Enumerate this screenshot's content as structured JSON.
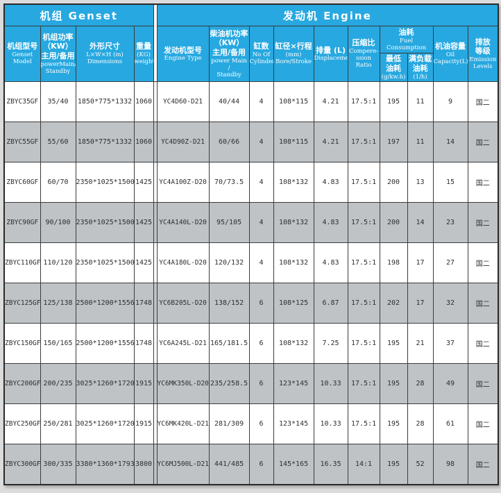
{
  "colors": {
    "header_blue": "#27a8e0",
    "row_white": "#ffffff",
    "row_alt_gray": "#bfc3c6",
    "border_dark": "#3a3a3a",
    "page_margin_gray": "#dcdcdc",
    "header_text": "#ffffff",
    "cell_text": "#2e2e2e"
  },
  "table": {
    "section_genset": "机组 Genset",
    "section_engine": "发动机 Engine",
    "headers": {
      "genset_model": {
        "zh": "机组型号",
        "en": "Genset\nModel"
      },
      "genset_power": {
        "zh": "机组功率\n（KW）\n主用/备用",
        "en": "powerMain/\nStandby"
      },
      "dimensions": {
        "zh": "外形尺寸",
        "en": "L×W×H (m)\nDimensions"
      },
      "weight": {
        "zh": "重量",
        "en": "(KG)\nweight"
      },
      "engine_type": {
        "zh": "发动机型号",
        "en": "Engine Type"
      },
      "engine_power": {
        "zh": "柴油机功率\n（KW）\n主用/备用",
        "en": "power Main /\nStandby"
      },
      "cylinders": {
        "zh": "缸数",
        "en": "No Of\nCylinder"
      },
      "bore_stroke": {
        "zh": "缸径×行程",
        "en": "(mm)\nBore/Stroke"
      },
      "displacement": {
        "zh": "排量 (L)",
        "en": "Displacement"
      },
      "compression_ratio": {
        "zh": "压缩比",
        "en": "Compere-\nssion Ratio"
      },
      "fuel_group": {
        "zh": "油耗",
        "en": "Fuel Consumption"
      },
      "fuel_min": {
        "zh": "最低\n油耗",
        "en": "(g/kw.h)"
      },
      "fuel_full_load": {
        "zh": "满负载\n油耗",
        "en": "(1/h)"
      },
      "oil_capacity": {
        "zh": "机油容量",
        "en": "Oil\nCapacity(L)"
      },
      "emission": {
        "zh": "排放\n等级",
        "en": "Emission\nLevels"
      }
    },
    "row_keys": [
      "model",
      "power",
      "dimensions",
      "weight",
      "engine_type",
      "engine_power",
      "cylinders",
      "bore_stroke",
      "displacement",
      "compression_ratio",
      "fuel_min",
      "fuel_full_load",
      "oil_capacity",
      "emission"
    ],
    "rows": [
      {
        "model": "ZBYC35GF",
        "power": "35/40",
        "dimensions": "1850*775*1332",
        "weight": "1060",
        "engine_type": "YC4D60-D21",
        "engine_power": "40/44",
        "cylinders": "4",
        "bore_stroke": "108*115",
        "displacement": "4.21",
        "compression_ratio": "17.5:1",
        "fuel_min": "195",
        "fuel_full_load": "11",
        "oil_capacity": "9",
        "emission": "国二"
      },
      {
        "model": "ZBYC55GF",
        "power": "55/60",
        "dimensions": "1850*775*1332",
        "weight": "1060",
        "engine_type": "YC4D90Z-D21",
        "engine_power": "60/66",
        "cylinders": "4",
        "bore_stroke": "108*115",
        "displacement": "4.21",
        "compression_ratio": "17.5:1",
        "fuel_min": "197",
        "fuel_full_load": "11",
        "oil_capacity": "14",
        "emission": "国二"
      },
      {
        "model": "ZBYC60GF",
        "power": "60/70",
        "dimensions": "2350*1025*1500",
        "weight": "1425",
        "engine_type": "YC4A100Z-D20",
        "engine_power": "70/73.5",
        "cylinders": "4",
        "bore_stroke": "108*132",
        "displacement": "4.83",
        "compression_ratio": "17.5:1",
        "fuel_min": "200",
        "fuel_full_load": "13",
        "oil_capacity": "15",
        "emission": "国二"
      },
      {
        "model": "ZBYC90GF",
        "power": "90/100",
        "dimensions": "2350*1025*1500",
        "weight": "1425",
        "engine_type": "YC4A140L-D20",
        "engine_power": "95/105",
        "cylinders": "4",
        "bore_stroke": "108*132",
        "displacement": "4.83",
        "compression_ratio": "17.5:1",
        "fuel_min": "200",
        "fuel_full_load": "14",
        "oil_capacity": "23",
        "emission": "国二"
      },
      {
        "model": "ZBYC110GF",
        "power": "110/120",
        "dimensions": "2350*1025*1500",
        "weight": "1425",
        "engine_type": "YC4A180L-D20",
        "engine_power": "120/132",
        "cylinders": "4",
        "bore_stroke": "108*132",
        "displacement": "4.83",
        "compression_ratio": "17.5:1",
        "fuel_min": "198",
        "fuel_full_load": "17",
        "oil_capacity": "27",
        "emission": "国二"
      },
      {
        "model": "ZBYC125GF",
        "power": "125/138",
        "dimensions": "2500*1200*1556",
        "weight": "1748",
        "engine_type": "YC6B205L-D20",
        "engine_power": "138/152",
        "cylinders": "6",
        "bore_stroke": "108*125",
        "displacement": "6.87",
        "compression_ratio": "17.5:1",
        "fuel_min": "202",
        "fuel_full_load": "17",
        "oil_capacity": "32",
        "emission": "国二"
      },
      {
        "model": "ZBYC150GF",
        "power": "150/165",
        "dimensions": "2500*1200*1556",
        "weight": "1748",
        "engine_type": "YC6A245L-D21",
        "engine_power": "165/181.5",
        "cylinders": "6",
        "bore_stroke": "108*132",
        "displacement": "7.25",
        "compression_ratio": "17.5:1",
        "fuel_min": "195",
        "fuel_full_load": "21",
        "oil_capacity": "37",
        "emission": "国二"
      },
      {
        "model": "ZBYC200GF",
        "power": "200/235",
        "dimensions": "3025*1260*1720",
        "weight": "1915",
        "engine_type": "YC6MK350L-D20",
        "engine_power": "235/258.5",
        "cylinders": "6",
        "bore_stroke": "123*145",
        "displacement": "10.33",
        "compression_ratio": "17.5:1",
        "fuel_min": "195",
        "fuel_full_load": "28",
        "oil_capacity": "49",
        "emission": "国二"
      },
      {
        "model": "ZBYC250GF",
        "power": "250/281",
        "dimensions": "3025*1260*1720",
        "weight": "1915",
        "engine_type": "YC6MK420L-D21",
        "engine_power": "281/309",
        "cylinders": "6",
        "bore_stroke": "123*145",
        "displacement": "10.33",
        "compression_ratio": "17.5:1",
        "fuel_min": "195",
        "fuel_full_load": "28",
        "oil_capacity": "61",
        "emission": "国二"
      },
      {
        "model": "ZBYC300GF",
        "power": "300/335",
        "dimensions": "3380*1360*1793",
        "weight": "3800",
        "engine_type": "YC6MJ500L-D21",
        "engine_power": "441/485",
        "cylinders": "6",
        "bore_stroke": "145*165",
        "displacement": "16.35",
        "compression_ratio": "14:1",
        "fuel_min": "195",
        "fuel_full_load": "52",
        "oil_capacity": "98",
        "emission": "国二"
      }
    ]
  }
}
